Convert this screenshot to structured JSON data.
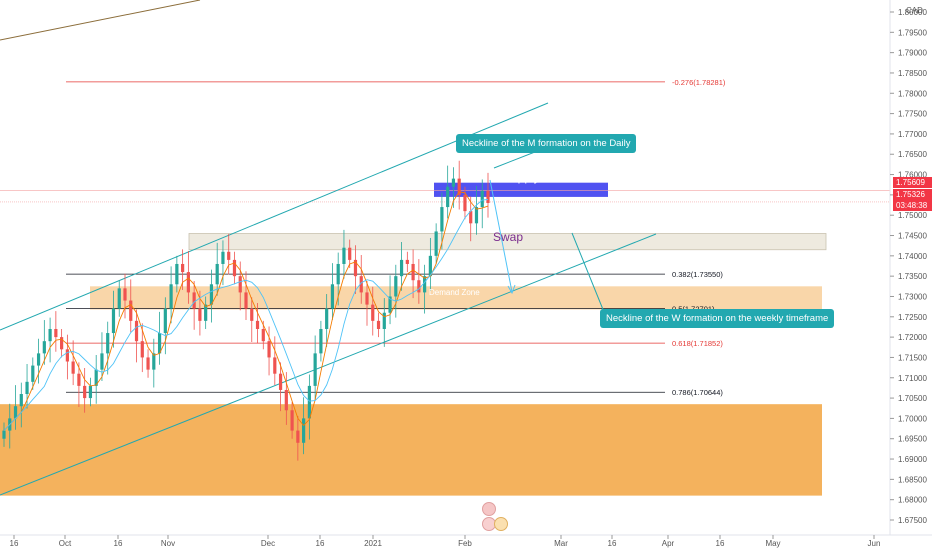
{
  "currency_label": "CAD",
  "price_ticks": [
    "1.80000",
    "1.79500",
    "1.79000",
    "1.78500",
    "1.78000",
    "1.77500",
    "1.77000",
    "1.76500",
    "1.76000",
    "1.75500",
    "1.75000",
    "1.74500",
    "1.74000",
    "1.73500",
    "1.73000",
    "1.72500",
    "1.72000",
    "1.71500",
    "1.71000",
    "1.70500",
    "1.70000",
    "1.69500",
    "1.69000",
    "1.68500",
    "1.68000",
    "1.67500"
  ],
  "date_ticks": [
    "16",
    "Oct",
    "16",
    "Nov",
    "Dec",
    "16",
    "2021",
    "Feb",
    "Mar",
    "16",
    "Apr",
    "16",
    "May",
    "Jun"
  ],
  "price_tags": {
    "upper": "1.75609",
    "current": "1.75326",
    "countdown": "03:48:38"
  },
  "fib_levels": [
    {
      "label": "-0.276(1.78281)",
      "value": 1.78281,
      "color": "#e53935"
    },
    {
      "label": "0.382(1.73550)",
      "value": 1.7355,
      "color": "#131722"
    },
    {
      "label": "0.5(1.72701)",
      "value": 1.72701,
      "color": "#131722"
    },
    {
      "label": "0.618(1.71852)",
      "value": 1.71852,
      "color": "#e53935"
    },
    {
      "label": "0.786(1.70644)",
      "value": 1.70644,
      "color": "#131722"
    }
  ],
  "zones": {
    "supply": "Supply",
    "swap": "Swap",
    "demand": "Demand Zone"
  },
  "annotations": {
    "m_neckline": "Neckline of the M formation on the Daily",
    "w_neckline": "Neckline of the W formation on the weekly timeframe"
  },
  "colors": {
    "bull": "#26a69a",
    "bear": "#ef5350",
    "supply": "#3d3ff0",
    "demand": "#f2a541",
    "teal_label": "#22a8b0"
  },
  "chart_data": {
    "type": "candlestick",
    "symbol_currency": "CAD",
    "ylim": [
      1.673,
      1.805
    ],
    "x_ticks": [
      "16",
      "Oct",
      "16",
      "Nov",
      "Dec",
      "16",
      "2021",
      "Feb",
      "Mar",
      "16",
      "Apr",
      "16",
      "May",
      "Jun"
    ],
    "last_price": 1.75326,
    "close_series": [
      1.697,
      1.7,
      1.703,
      1.706,
      1.709,
      1.713,
      1.716,
      1.719,
      1.722,
      1.72,
      1.717,
      1.714,
      1.711,
      1.708,
      1.705,
      1.708,
      1.712,
      1.716,
      1.721,
      1.727,
      1.732,
      1.729,
      1.724,
      1.719,
      1.715,
      1.712,
      1.716,
      1.721,
      1.727,
      1.733,
      1.738,
      1.736,
      1.731,
      1.727,
      1.724,
      1.728,
      1.733,
      1.738,
      1.741,
      1.739,
      1.735,
      1.731,
      1.727,
      1.724,
      1.722,
      1.719,
      1.715,
      1.711,
      1.707,
      1.702,
      1.697,
      1.694,
      1.7,
      1.708,
      1.716,
      1.722,
      1.727,
      1.733,
      1.738,
      1.742,
      1.739,
      1.735,
      1.731,
      1.728,
      1.724,
      1.722,
      1.726,
      1.73,
      1.735,
      1.739,
      1.738,
      1.734,
      1.731,
      1.735,
      1.74,
      1.746,
      1.752,
      1.757,
      1.759,
      1.755,
      1.751,
      1.748,
      1.752,
      1.756,
      1.753
    ]
  }
}
